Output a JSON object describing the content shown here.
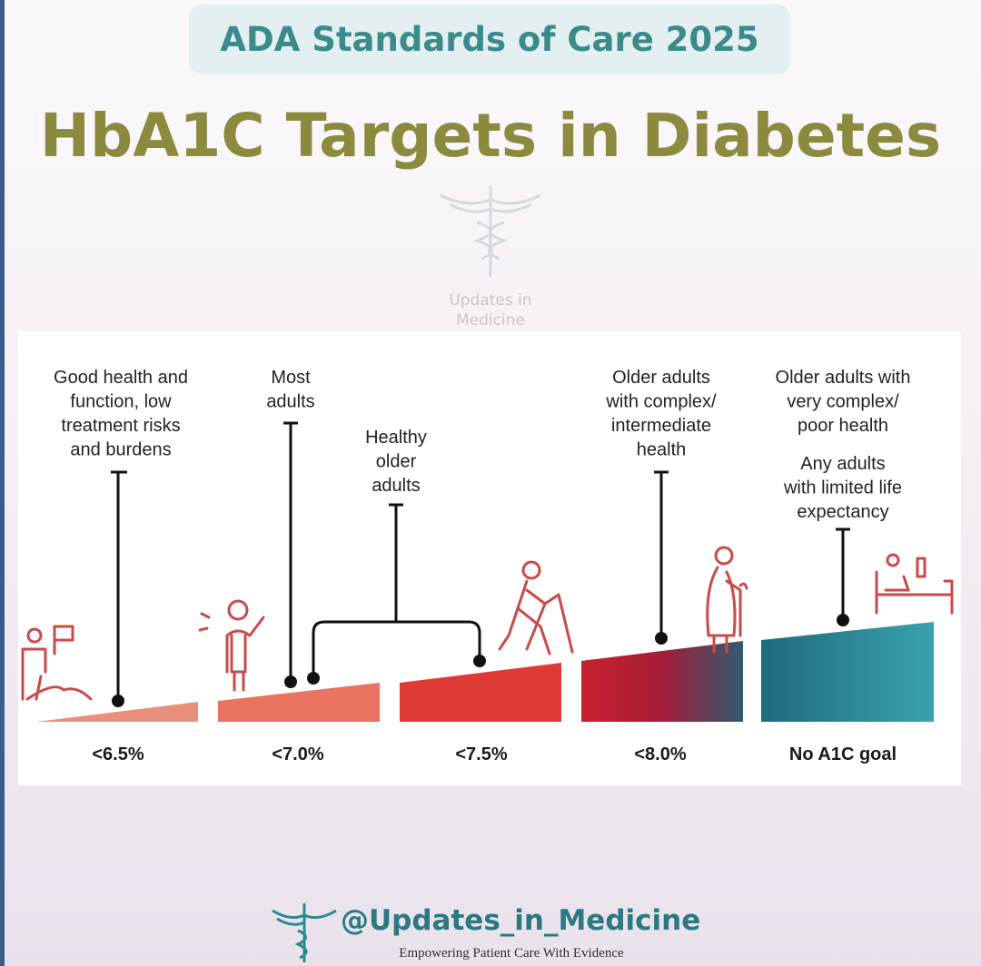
{
  "header": {
    "badge": "ADA Standards of Care 2025",
    "title": "HbA1C Targets in Diabetes"
  },
  "watermark": [
    "Updates in",
    "Medicine"
  ],
  "groups": [
    {
      "lines": [
        "Good health and",
        "function, low",
        "treatment risks",
        "and burdens"
      ]
    },
    {
      "lines": [
        "Most",
        "adults"
      ]
    },
    {
      "lines": [
        "Healthy",
        "older",
        "adults"
      ]
    },
    {
      "lines": [
        "Older adults",
        "with complex/",
        "intermediate",
        "health"
      ]
    },
    {
      "lines": [
        "Older adults with",
        "very complex/",
        "poor health"
      ],
      "extra": [
        "Any adults",
        "with limited life",
        "expectancy"
      ]
    }
  ],
  "targets": [
    "<6.5%",
    "<7.0%",
    "<7.5%",
    "<8.0%",
    "No A1C goal"
  ],
  "footer": {
    "handle": "@Updates_in_Medicine",
    "tagline": "Empowering Patient Care With Evidence"
  }
}
